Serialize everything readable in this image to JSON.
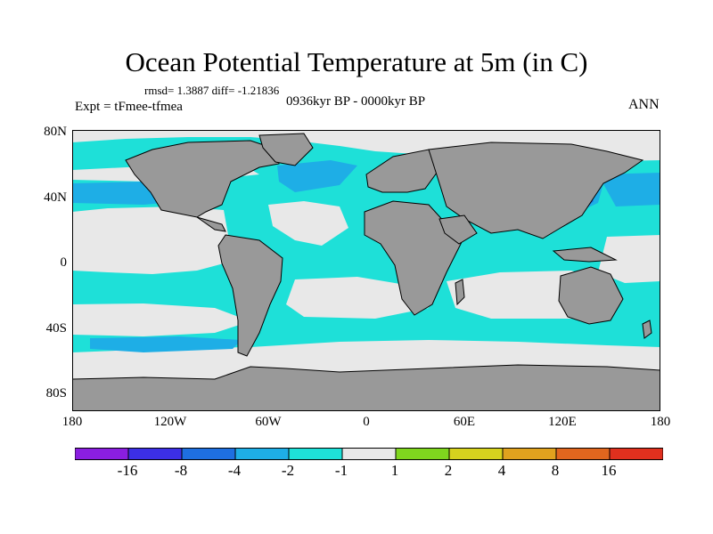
{
  "title": "Ocean Potential Temperature at 5m (in C)",
  "stats": "rmsd= 1.3887 diff= -1.21836",
  "experiment": "Expt = tFmee-tfmea",
  "period": "0936kyr BP - 0000kyr BP",
  "season": "ANN",
  "y_ticks": [
    "80N",
    "40N",
    "0",
    "40S",
    "80S"
  ],
  "x_ticks": [
    "180",
    "120W",
    "60W",
    "0",
    "60E",
    "120E",
    "180"
  ],
  "colorbar": {
    "labels": [
      "-16",
      "-8",
      "-4",
      "-2",
      "-1",
      "1",
      "2",
      "4",
      "8",
      "16"
    ],
    "colors": [
      "#8a1ee0",
      "#3c2fe6",
      "#1e6fe0",
      "#1eaee6",
      "#1ee0d8",
      "#e8e8e8",
      "#7fd61e",
      "#d6d21e",
      "#e0a21e",
      "#e0661e",
      "#e0301e"
    ]
  },
  "map_colors": {
    "land": "#999999",
    "neutral": "#e8e8e8",
    "cool": "#1ee0d8",
    "cooler": "#1eaee6",
    "coolest": "#1e6fe0"
  }
}
